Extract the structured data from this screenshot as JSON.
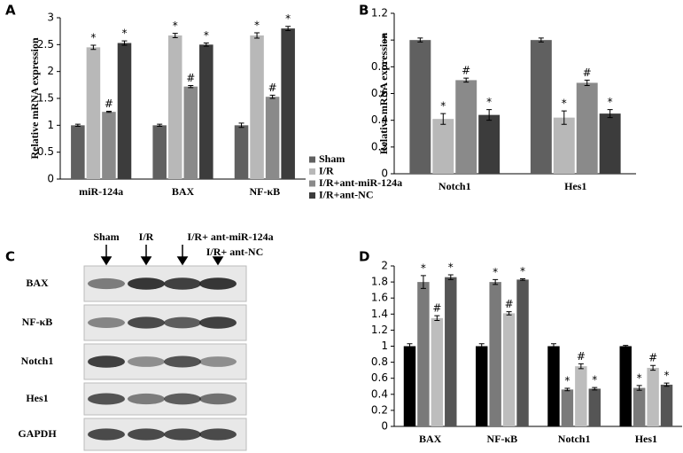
{
  "chart_data": [
    {
      "type": "bar",
      "panel": "A",
      "y_label": "Relative mRNA expression",
      "categories": [
        "miR-124a",
        "BAX",
        "NF-κB"
      ],
      "series": [
        {
          "name": "Sham",
          "color": "#606060",
          "values": [
            1,
            1,
            1
          ],
          "errors": [
            0.02,
            0.02,
            0.04
          ]
        },
        {
          "name": "I/R",
          "color": "#b8b8b8",
          "values": [
            2.45,
            2.67,
            2.67
          ],
          "errors": [
            0.04,
            0.04,
            0.05
          ],
          "markers": [
            "*",
            "*",
            "*"
          ]
        },
        {
          "name": "I/R+ant-miR-124a",
          "color": "#8a8a8a",
          "values": [
            1.25,
            1.72,
            1.53
          ],
          "errors": [
            0.01,
            0.02,
            0.03
          ],
          "markers": [
            "#",
            "#",
            "#"
          ]
        },
        {
          "name": "I/R+ant-NC",
          "color": "#3c3c3c",
          "values": [
            2.53,
            2.5,
            2.8
          ],
          "errors": [
            0.04,
            0.03,
            0.04
          ],
          "markers": [
            "*",
            "*",
            "*"
          ]
        }
      ],
      "ylim": [
        0,
        3
      ],
      "yticks": [
        0,
        0.5,
        1,
        1.5,
        2,
        2.5,
        3
      ]
    },
    {
      "type": "bar",
      "panel": "B",
      "y_label": "Relative mRNA expression",
      "categories": [
        "Notch1",
        "Hes1"
      ],
      "series": [
        {
          "name": "Sham",
          "color": "#606060",
          "values": [
            1,
            1
          ],
          "errors": [
            0.015,
            0.015
          ]
        },
        {
          "name": "I/R",
          "color": "#b8b8b8",
          "values": [
            0.41,
            0.42
          ],
          "errors": [
            0.04,
            0.05
          ],
          "markers": [
            "*",
            "*"
          ]
        },
        {
          "name": "I/R+ant-miR-124a",
          "color": "#8a8a8a",
          "values": [
            0.7,
            0.68
          ],
          "errors": [
            0.015,
            0.02
          ],
          "markers": [
            "#",
            "#"
          ]
        },
        {
          "name": "I/R+ant-NC",
          "color": "#3c3c3c",
          "values": [
            0.44,
            0.45
          ],
          "errors": [
            0.04,
            0.03
          ],
          "markers": [
            "*",
            "*"
          ]
        }
      ],
      "ylim": [
        0,
        1.2
      ],
      "yticks": [
        0,
        0.2,
        0.4,
        0.6,
        0.8,
        1,
        1.2
      ],
      "legend": "bottom-left"
    },
    {
      "type": "bar",
      "panel": "D",
      "categories": [
        "BAX",
        "NF-κB",
        "Notch1",
        "Hes1"
      ],
      "series": [
        {
          "color": "#000000",
          "values": [
            1,
            1,
            1,
            1
          ],
          "errors": [
            0.03,
            0.03,
            0.03,
            0.01
          ]
        },
        {
          "color": "#7a7a7a",
          "values": [
            1.8,
            1.8,
            0.46,
            0.48
          ],
          "errors": [
            0.08,
            0.03,
            0.015,
            0.03
          ],
          "markers": [
            "*",
            "*",
            "*",
            "*"
          ]
        },
        {
          "color": "#bdbdbd",
          "values": [
            1.35,
            1.41,
            0.75,
            0.73
          ],
          "errors": [
            0.03,
            0.02,
            0.03,
            0.03
          ],
          "markers": [
            "#",
            "#",
            "#",
            "#"
          ]
        },
        {
          "color": "#555555",
          "values": [
            1.86,
            1.83,
            0.47,
            0.52
          ],
          "errors": [
            0.03,
            0.01,
            0.015,
            0.02
          ],
          "markers": [
            "*",
            "*",
            "*",
            "*"
          ]
        }
      ],
      "ylim": [
        0,
        2
      ],
      "yticks": [
        0,
        0.2,
        0.4,
        0.6,
        0.8,
        1,
        1.2,
        1.4,
        1.6,
        1.8,
        2
      ]
    }
  ],
  "blot": {
    "panel": "C",
    "columns": [
      "Sham",
      "I/R",
      "I/R+ ant-miR-124a",
      "I/R+ ant-NC"
    ],
    "rows": [
      "BAX",
      "NF-κB",
      "Notch1",
      "Hes1",
      "GAPDH"
    ]
  }
}
